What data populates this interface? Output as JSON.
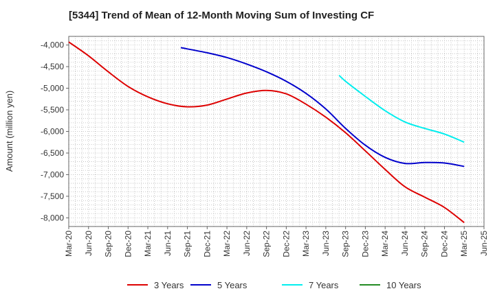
{
  "chart_data": {
    "type": "line",
    "title": "[5344]  Trend of Mean of 12-Month Moving Sum of Investing CF",
    "xlabel": "",
    "ylabel": "Amount (million yen)",
    "ylim": [
      -8200,
      -3800
    ],
    "yticks": [
      -4000,
      -4500,
      -5000,
      -5500,
      -6000,
      -6500,
      -7000,
      -7500,
      -8000
    ],
    "ytick_labels": [
      "-4,000",
      "-4,500",
      "-5,000",
      "-5,500",
      "-6,000",
      "-6,500",
      "-7,000",
      "-7,500",
      "-8,000"
    ],
    "x_start": "Mar-20",
    "xtick_labels": [
      "Mar-20",
      "Jun-20",
      "Sep-20",
      "Dec-20",
      "Mar-21",
      "Jun-21",
      "Sep-21",
      "Dec-21",
      "Mar-22",
      "Jun-22",
      "Sep-22",
      "Dec-22",
      "Mar-23",
      "Jun-23",
      "Sep-23",
      "Dec-23",
      "Mar-24",
      "Jun-24",
      "Sep-24",
      "Dec-24",
      "Mar-25",
      "Jun-25"
    ],
    "grid": true,
    "legend_position": "bottom",
    "series": [
      {
        "name": "3 Years",
        "color": "#dd0000",
        "x": [
          "Mar-20",
          "Jun-20",
          "Sep-20",
          "Dec-20",
          "Mar-21",
          "Jun-21",
          "Sep-21",
          "Dec-21",
          "Mar-22",
          "Jun-22",
          "Sep-22",
          "Dec-22",
          "Mar-23",
          "Jun-23",
          "Sep-23",
          "Dec-23",
          "Mar-24",
          "Jun-24",
          "Sep-24",
          "Dec-24",
          "Mar-25"
        ],
        "values": [
          -3930,
          -4250,
          -4620,
          -4960,
          -5200,
          -5360,
          -5430,
          -5390,
          -5250,
          -5110,
          -5050,
          -5130,
          -5370,
          -5670,
          -6030,
          -6450,
          -6880,
          -7280,
          -7520,
          -7760,
          -8110
        ]
      },
      {
        "name": "5 Years",
        "color": "#0000cc",
        "x": [
          "Aug-21",
          "Sep-21",
          "Dec-21",
          "Mar-22",
          "Jun-22",
          "Sep-22",
          "Dec-22",
          "Mar-23",
          "Jun-23",
          "Sep-23",
          "Dec-23",
          "Mar-24",
          "Jun-24",
          "Sep-24",
          "Dec-24",
          "Mar-25"
        ],
        "values": [
          -4060,
          -4090,
          -4180,
          -4290,
          -4440,
          -4620,
          -4840,
          -5120,
          -5480,
          -5930,
          -6320,
          -6600,
          -6740,
          -6720,
          -6730,
          -6810
        ]
      },
      {
        "name": "7 Years",
        "color": "#00eeee",
        "x": [
          "Aug-23",
          "Sep-23",
          "Dec-23",
          "Mar-24",
          "Jun-24",
          "Sep-24",
          "Dec-24",
          "Mar-25"
        ],
        "values": [
          -4700,
          -4840,
          -5190,
          -5520,
          -5780,
          -5930,
          -6060,
          -6250
        ]
      },
      {
        "name": "10 Years",
        "color": "#228b22",
        "x": [],
        "values": []
      }
    ]
  }
}
